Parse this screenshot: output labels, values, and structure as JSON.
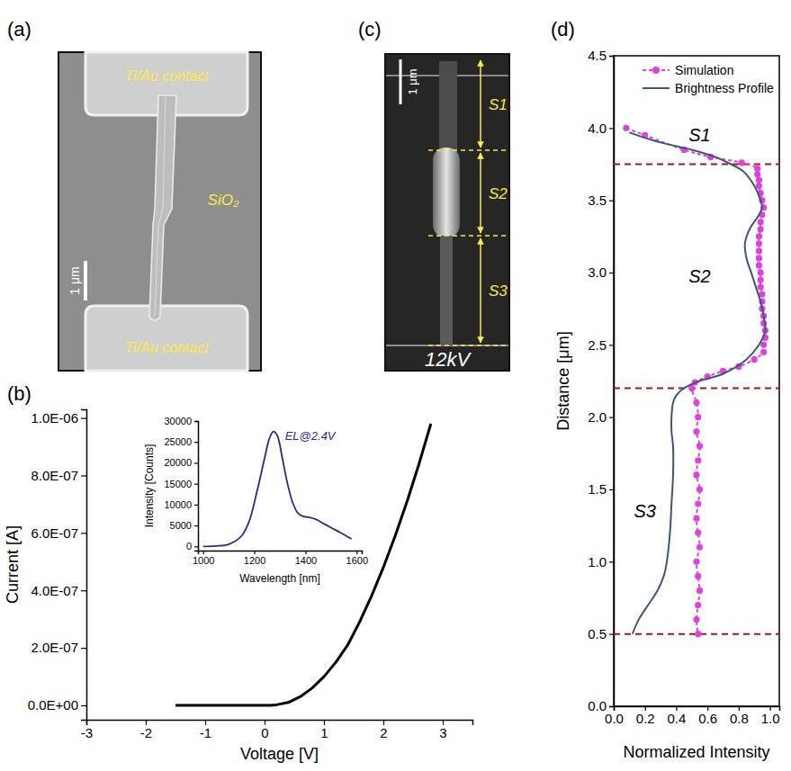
{
  "images": [
    {
      "panel": "(a)",
      "contact_top": "Ti/Au contact",
      "contact_bottom": "Ti/Au contact",
      "substrate": "SiO₂",
      "scale_bar": "1 μm"
    },
    {
      "panel": "(c)",
      "segments": [
        "S1",
        "S2",
        "S3"
      ],
      "beam_voltage": "12kV",
      "scale_bar": "1 μm"
    }
  ],
  "chart_data": [
    {
      "panel": "(b)",
      "type": "line",
      "x_label": "Voltage [V]",
      "y_label": "Current [A]",
      "x": [
        -1.5,
        -1,
        -0.5,
        0,
        0.1,
        0.2,
        0.4,
        0.6,
        0.8,
        1.0,
        1.2,
        1.4,
        1.6,
        1.8,
        2.0,
        2.2,
        2.4,
        2.6,
        2.8
      ],
      "values": [
        0,
        0,
        0,
        0,
        0,
        2e-09,
        1e-08,
        3e-08,
        6e-08,
        1e-07,
        1.5e-07,
        2.1e-07,
        2.9e-07,
        3.8e-07,
        4.8e-07,
        5.9e-07,
        7.1e-07,
        8.4e-07,
        9.8e-07
      ],
      "color": "#000000",
      "xlim": [
        -3,
        3.5
      ],
      "xticks": [
        -3,
        -2,
        -1,
        0,
        1,
        2,
        3
      ],
      "ylim": [
        -5e-08,
        1.03e-06
      ],
      "yticks": [
        {
          "value": 0,
          "label": "0.0E+00"
        },
        {
          "value": 2e-07,
          "label": "2.0E-07"
        },
        {
          "value": 4e-07,
          "label": "4.0E-07"
        },
        {
          "value": 6e-07,
          "label": "6.0E-07"
        },
        {
          "value": 8e-07,
          "label": "8.0E-07"
        },
        {
          "value": 1e-06,
          "label": "1.0E-06"
        }
      ]
    },
    {
      "type": "line",
      "annotations": [
        "EL@2.4V"
      ],
      "x_label": "Wavelength [nm]",
      "y_label": "Intensity [Counts]",
      "x": [
        1000,
        1050,
        1100,
        1150,
        1180,
        1210,
        1240,
        1260,
        1275,
        1290,
        1310,
        1330,
        1350,
        1370,
        1390,
        1410,
        1440,
        1470,
        1500,
        1540,
        1580
      ],
      "values": [
        0,
        100,
        500,
        2500,
        6000,
        13000,
        21000,
        26000,
        27500,
        26500,
        21000,
        15000,
        10500,
        8000,
        7200,
        7000,
        6500,
        5500,
        4500,
        3200,
        1800
      ],
      "color": "#2a2a8c",
      "xlim": [
        980,
        1620
      ],
      "xticks": [
        1000,
        1200,
        1400,
        1600
      ],
      "ylim": [
        -1000,
        30000
      ],
      "yticks": [
        0,
        5000,
        10000,
        15000,
        20000,
        25000,
        30000
      ]
    },
    {
      "panel": "(d)",
      "type": "line",
      "x_label": "Normalized Intensity",
      "y_label": "Distance [μm]",
      "legend": "upper right",
      "annotations": [
        "S1",
        "S2",
        "S3"
      ],
      "boundaries": [
        3.75,
        2.2,
        0.5
      ],
      "series": [
        {
          "name": "Simulation",
          "color": "#e040e0",
          "marker": "circle",
          "line_style": "dashed",
          "x": [
            0.08,
            0.2,
            0.45,
            0.62,
            0.82,
            0.92,
            0.92,
            0.93,
            0.93,
            0.94,
            0.95,
            0.96,
            0.95,
            0.94,
            0.94,
            0.93,
            0.93,
            0.93,
            0.93,
            0.93,
            0.94,
            0.94,
            0.94,
            0.95,
            0.95,
            0.95,
            0.96,
            0.96,
            0.97,
            0.97,
            0.96,
            0.96,
            0.9,
            0.8,
            0.7,
            0.6,
            0.52,
            0.5,
            0.53,
            0.54,
            0.53,
            0.55,
            0.54,
            0.53,
            0.55,
            0.54,
            0.53,
            0.54,
            0.55,
            0.53,
            0.54,
            0.55,
            0.54,
            0.53,
            0.54
          ],
          "values": [
            4.0,
            3.95,
            3.85,
            3.8,
            3.76,
            3.72,
            3.68,
            3.64,
            3.6,
            3.55,
            3.5,
            3.45,
            3.4,
            3.35,
            3.3,
            3.25,
            3.2,
            3.15,
            3.1,
            3.05,
            3.0,
            2.95,
            2.9,
            2.85,
            2.8,
            2.75,
            2.7,
            2.65,
            2.6,
            2.55,
            2.5,
            2.45,
            2.4,
            2.35,
            2.32,
            2.28,
            2.24,
            2.2,
            2.1,
            2.0,
            1.9,
            1.8,
            1.7,
            1.6,
            1.5,
            1.4,
            1.3,
            1.2,
            1.1,
            1.0,
            0.9,
            0.8,
            0.7,
            0.6,
            0.5
          ]
        },
        {
          "name": "Brightness Profile",
          "color": "#3b5878",
          "line_style": "solid",
          "x": [
            0.1,
            0.15,
            0.3,
            0.5,
            0.65,
            0.75,
            0.83,
            0.9,
            0.94,
            0.95,
            0.93,
            0.87,
            0.84,
            0.85,
            0.88,
            0.91,
            0.94,
            0.96,
            0.97,
            0.93,
            0.85,
            0.7,
            0.55,
            0.45,
            0.4,
            0.38,
            0.37,
            0.37,
            0.38,
            0.38,
            0.37,
            0.36,
            0.34,
            0.32,
            0.28,
            0.22,
            0.16,
            0.12
          ],
          "values": [
            3.97,
            3.95,
            3.9,
            3.85,
            3.8,
            3.75,
            3.7,
            3.6,
            3.5,
            3.45,
            3.4,
            3.3,
            3.2,
            3.1,
            3.0,
            2.9,
            2.8,
            2.7,
            2.6,
            2.5,
            2.4,
            2.3,
            2.25,
            2.2,
            2.15,
            2.1,
            2.0,
            1.9,
            1.8,
            1.6,
            1.4,
            1.2,
            1.0,
            0.9,
            0.8,
            0.7,
            0.6,
            0.5
          ]
        }
      ],
      "xlim": [
        0,
        1.06
      ],
      "xticks": [
        {
          "value": 0,
          "label": "0.0"
        },
        {
          "value": 0.2,
          "label": "0.2"
        },
        {
          "value": 0.4,
          "label": "0.4"
        },
        {
          "value": 0.6,
          "label": "0.6"
        },
        {
          "value": 0.8,
          "label": "0.8"
        },
        {
          "value": 1.0,
          "label": "1.0"
        }
      ],
      "ylim": [
        0,
        4.5
      ],
      "yticks": [
        {
          "value": 0,
          "label": "0.0"
        },
        {
          "value": 0.5,
          "label": "0.5"
        },
        {
          "value": 1.0,
          "label": "1.0"
        },
        {
          "value": 1.5,
          "label": "1.5"
        },
        {
          "value": 2.0,
          "label": "2.0"
        },
        {
          "value": 2.5,
          "label": "2.5"
        },
        {
          "value": 3.0,
          "label": "3.0"
        },
        {
          "value": 3.5,
          "label": "3.5"
        },
        {
          "value": 4.0,
          "label": "4.0"
        },
        {
          "value": 4.5,
          "label": "4.5"
        }
      ]
    }
  ]
}
